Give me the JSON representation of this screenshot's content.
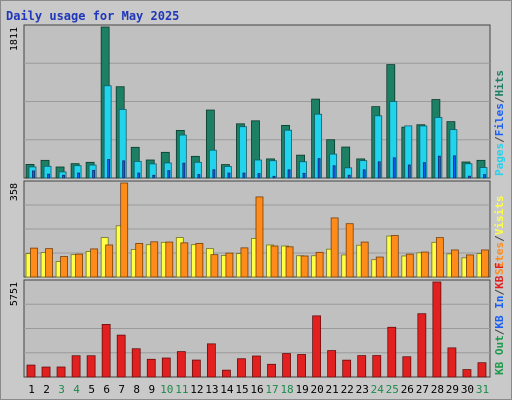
{
  "chart_data": [
    {
      "type": "bar",
      "title": "Daily usage for May 2025",
      "categories": [
        "1",
        "2",
        "3",
        "4",
        "5",
        "6",
        "7",
        "8",
        "9",
        "10",
        "11",
        "12",
        "13",
        "14",
        "15",
        "16",
        "17",
        "18",
        "19",
        "20",
        "21",
        "22",
        "23",
        "24",
        "25",
        "26",
        "27",
        "28",
        "29",
        "30",
        "31"
      ],
      "weekend_categories": [
        "3",
        "4",
        "10",
        "11",
        "17",
        "18",
        "24",
        "25",
        "31"
      ],
      "ymax_label": "1811",
      "ylim": [
        0,
        1811
      ],
      "legend": [
        {
          "name": "Hits",
          "color": "#1d7f63"
        },
        {
          "name": "/",
          "color": "#444444"
        },
        {
          "name": "Files",
          "color": "#1a5ff5"
        },
        {
          "name": "/",
          "color": "#444444"
        },
        {
          "name": "Pages",
          "color": "#22d3ee"
        }
      ],
      "series": [
        {
          "name": "Hits",
          "color": "#1d7f63",
          "values": [
            163,
            212,
            132,
            172,
            188,
            1811,
            1095,
            368,
            216,
            308,
            571,
            260,
            815,
            161,
            650,
            686,
            229,
            631,
            274,
            946,
            459,
            371,
            229,
            856,
            1360,
            610,
            639,
            941,
            676,
            192,
            212
          ]
        },
        {
          "name": "Files",
          "color": "#1a5ff5",
          "values": [
            85,
            46,
            33,
            59,
            92,
            222,
            206,
            59,
            33,
            89,
            178,
            42,
            99,
            59,
            59,
            53,
            20,
            98,
            56,
            232,
            147,
            33,
            98,
            194,
            242,
            156,
            184,
            262,
            266,
            22,
            41
          ]
        },
        {
          "name": "Pages",
          "color": "#22d3ee",
          "values": [
            133,
            140,
            73,
            148,
            155,
            1106,
            822,
            199,
            169,
            180,
            515,
            188,
            333,
            138,
            615,
            216,
            207,
            573,
            195,
            765,
            286,
            122,
            208,
            746,
            917,
            625,
            624,
            726,
            580,
            171,
            125
          ]
        }
      ]
    },
    {
      "type": "bar",
      "ymax_label": "358",
      "ylim": [
        0,
        358
      ],
      "legend": [
        {
          "name": "Visits",
          "color": "#ffff44"
        },
        {
          "name": "/",
          "color": "#444444"
        },
        {
          "name": "Sites",
          "color": "#ff8c1a"
        }
      ],
      "series": [
        {
          "name": "Visits",
          "color": "#ffff44",
          "values": [
            89,
            93,
            59,
            85,
            97,
            150,
            195,
            105,
            123,
            132,
            150,
            123,
            108,
            82,
            89,
            147,
            122,
            118,
            81,
            81,
            106,
            84,
            121,
            66,
            156,
            80,
            92,
            132,
            88,
            73,
            89
          ]
        },
        {
          "name": "Sites",
          "color": "#ff8c1a",
          "values": [
            110,
            108,
            78,
            87,
            107,
            122,
            358,
            128,
            134,
            133,
            130,
            128,
            85,
            91,
            111,
            305,
            118,
            115,
            80,
            94,
            225,
            203,
            133,
            76,
            158,
            87,
            95,
            150,
            103,
            84,
            103
          ]
        }
      ]
    },
    {
      "type": "bar",
      "ymax_label": "5751",
      "ylim": [
        0,
        5751
      ],
      "legend": [
        {
          "name": "KB F",
          "color": "#e32020"
        },
        {
          "name": "/",
          "color": "#444444"
        },
        {
          "name": "KB In",
          "color": "#1a5ff5"
        },
        {
          "name": "/",
          "color": "#444444"
        },
        {
          "name": "KB Out",
          "color": "#1d9a4a"
        }
      ],
      "series": [
        {
          "name": "KB F",
          "color": "#e32020",
          "values": [
            721,
            603,
            605,
            1288,
            1288,
            3184,
            2535,
            1711,
            1072,
            1148,
            1538,
            1025,
            2007,
            414,
            1106,
            1270,
            769,
            1419,
            1362,
            3701,
            1599,
            1020,
            1295,
            1299,
            3010,
            1226,
            3832,
            5751,
            1763,
            448,
            865
          ]
        }
      ]
    }
  ]
}
